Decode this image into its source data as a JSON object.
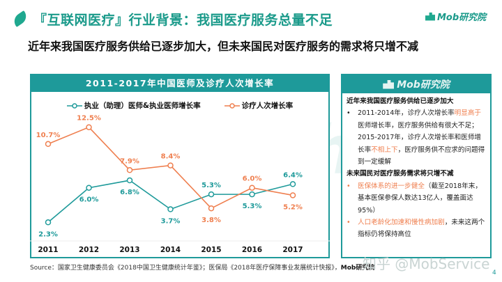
{
  "header": {
    "title": "『互联网医疗』行业背景：我国医疗服务总量不足",
    "subtitle": "近年来我国医疗服务供给已逐步加大，但未来国民对医疗服务的需求将只增不减",
    "brand": "Mob研究院"
  },
  "watermark": "MobTech",
  "chart_data": {
    "type": "line",
    "title": "2011-2017年中国医师及诊疗人次增长率",
    "categories": [
      "2011",
      "2012",
      "2013",
      "2014",
      "2015",
      "2016",
      "2017"
    ],
    "series": [
      {
        "name": "执业（助理）医师&执业医师增长率",
        "color": "#1e9a9a",
        "values": [
          2.3,
          6.0,
          6.8,
          3.7,
          5.3,
          5.3,
          6.4
        ],
        "labels": [
          "2.3%",
          "6.0%",
          "6.8%",
          "3.7%",
          "5.3%",
          "5.3%",
          "6.4%"
        ]
      },
      {
        "name": "诊疗人次增长率",
        "color": "#ef7f4f",
        "values": [
          10.7,
          12.5,
          7.9,
          8.4,
          3.8,
          6.0,
          5.2
        ],
        "labels": [
          "10.7%",
          "12.5%",
          "7.9%",
          "8.4%",
          "3.8%",
          "6.0%",
          "5.2%"
        ]
      }
    ],
    "xlabel": "",
    "ylabel": "",
    "ylim": [
      0,
      14
    ],
    "grid": false,
    "legend": "top-center"
  },
  "panel": {
    "brand": "Mob研究院",
    "section1_title": "近年来我国医疗服务供给已逐步加大",
    "bullet1": {
      "p1": "2011-2014年，诊疗人次增长率",
      "hl1": "明显高于",
      "p2": "医师增长率，医疗服务供给有很大不足；2015-2017年，诊疗人次增长率和医师增长率",
      "hl2": "不相上下",
      "p3": "，医疗服务供不应求的问题得到一定缓解"
    },
    "section2_title": "未来国民对医疗服务需求将只增不减",
    "bullet2": {
      "hl": "医保体系的进一步健全",
      "p": "（截至2018年末，基本医保参保人数达13亿人，覆盖面达95%）"
    },
    "bullet3": {
      "hl": "人口老龄化加速和慢性病加剧",
      "p": "，未来这两个指标仍将保持高位"
    },
    "bullet_glyph": "•"
  },
  "footer": {
    "source_prefix": "Source：国家卫生健康委员会《2018中国卫生健康统计年鉴》；医保局《2018年医疗保障事业发展统计快报》，",
    "source_brand": "Mob研究院",
    "zhihu_watermark": "知乎 @MobService",
    "page_number": "4"
  }
}
